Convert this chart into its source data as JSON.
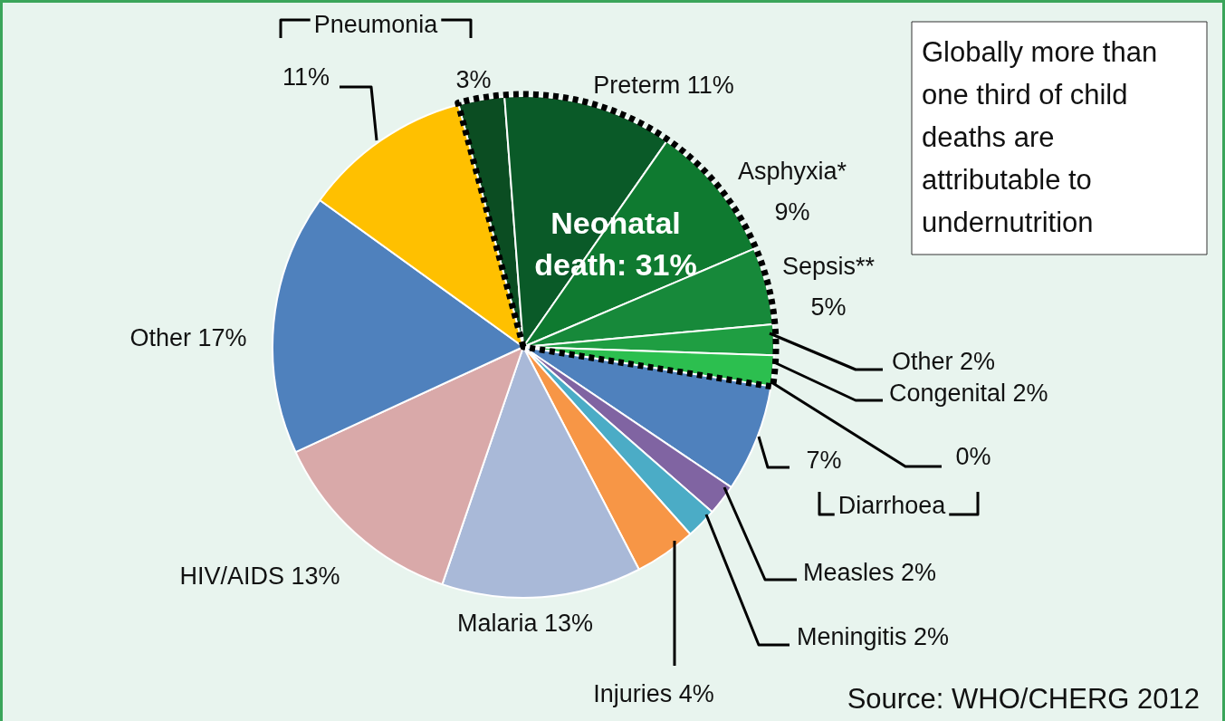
{
  "chart_data": {
    "type": "pie",
    "categories": [
      null,
      "Preterm",
      "Asphyxia*",
      "Sepsis**",
      "Other",
      "Congenital",
      null,
      "Diarrhoea",
      "Measles",
      "Meningitis",
      "Injuries",
      "Malaria",
      "HIV/AIDS",
      "Other",
      "Pneumonia"
    ],
    "values": [
      3,
      11,
      9,
      5,
      2,
      2,
      0,
      7,
      2,
      2,
      4,
      13,
      13,
      17,
      11
    ],
    "value_labels": [
      "3%",
      "11%",
      "9%",
      "5%",
      "2%",
      "2%",
      "0%",
      "7%",
      "2%",
      "2%",
      "4%",
      "13%",
      "13%",
      "17%",
      "11%"
    ],
    "colors": [
      "#0b4d22",
      "#0a5a28",
      "#0f7a30",
      "#17893a",
      "#1f9e42",
      "#2cbf4f",
      "#3ed45f",
      "#4f81bd",
      "#8064a2",
      "#4bacc6",
      "#f79646",
      "#a9b9d8",
      "#d9a9a9",
      "#4f81bd",
      "#ffc000"
    ],
    "legend": false,
    "annotations": [
      "Neonatal death: 31%",
      "Globally more than one third of child deaths are attributable to undernutrition",
      "Source: WHO/CHERG 2012"
    ]
  }
}
